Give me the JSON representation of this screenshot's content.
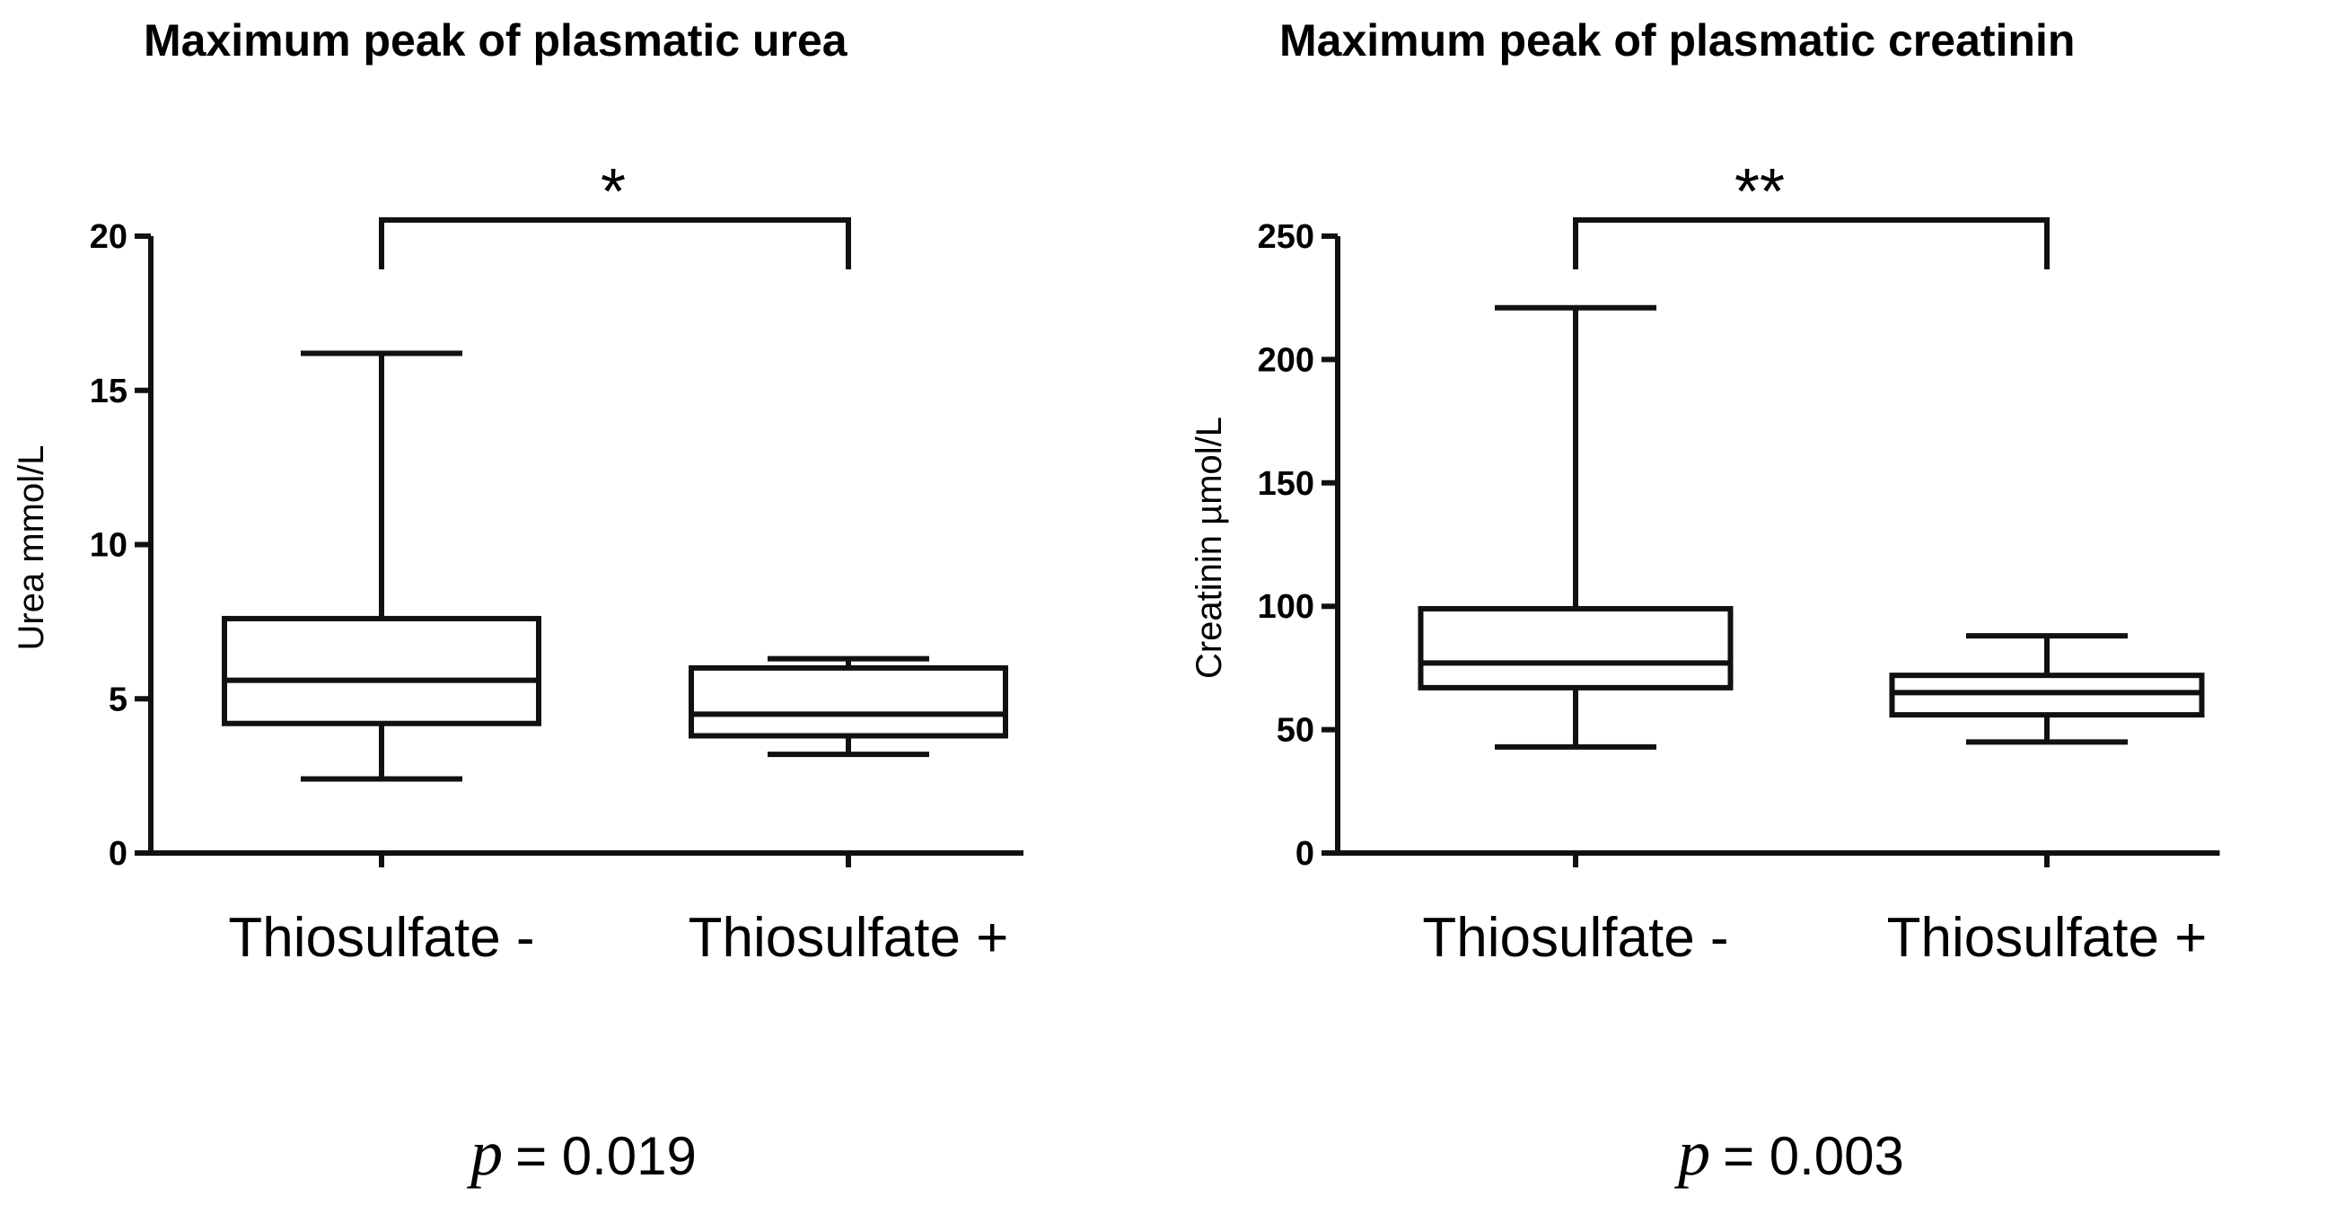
{
  "chart_data": [
    {
      "type": "boxplot",
      "title": "Maximum peak of plasmatic urea",
      "ylabel": "Urea mmol/L",
      "ylim": [
        0,
        20
      ],
      "yticks": [
        0,
        5,
        10,
        15,
        20
      ],
      "categories": [
        "Thiosulfate -",
        "Thiosulfate +"
      ],
      "boxes": [
        {
          "category": "Thiosulfate -",
          "min": 2.4,
          "q1": 4.2,
          "median": 5.6,
          "q3": 7.6,
          "max": 16.2
        },
        {
          "category": "Thiosulfate +",
          "min": 3.2,
          "q1": 3.8,
          "median": 4.5,
          "q3": 6.0,
          "max": 6.3
        }
      ],
      "significance": "*",
      "p_label": "p",
      "p_value": "= 0.019"
    },
    {
      "type": "boxplot",
      "title": "Maximum peak of plasmatic creatinin",
      "ylabel": "Creatinin µmol/L",
      "ylim": [
        0,
        250
      ],
      "yticks": [
        0,
        50,
        100,
        150,
        200,
        250
      ],
      "categories": [
        "Thiosulfate -",
        "Thiosulfate +"
      ],
      "boxes": [
        {
          "category": "Thiosulfate -",
          "min": 43,
          "q1": 67,
          "median": 77,
          "q3": 99,
          "max": 221
        },
        {
          "category": "Thiosulfate +",
          "min": 45,
          "q1": 56,
          "median": 65,
          "q3": 72,
          "max": 88
        }
      ],
      "significance": "**",
      "p_label": "p",
      "p_value": "= 0.003"
    }
  ]
}
